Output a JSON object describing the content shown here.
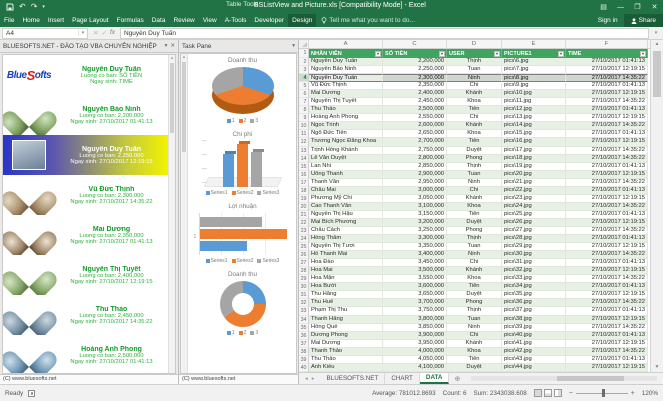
{
  "window": {
    "title": "BSListView and Picture.xls  [Compatibility Mode] - Excel",
    "contextual_group": "Table Tools",
    "quick_access": {
      "save": "save",
      "undo": "undo",
      "redo": "redo",
      "customize": "customize"
    },
    "controls": {
      "ribbon_options": "ribbon-display-options",
      "minimize": "—",
      "restore": "❐",
      "close": "✕"
    }
  },
  "ribbon": {
    "tabs": [
      "File",
      "Home",
      "Insert",
      "Page Layout",
      "Formulas",
      "Data",
      "Review",
      "View",
      "A-Tools",
      "Developer"
    ],
    "contextual_tab": "Design",
    "tell_me": "Tell me what you want to do...",
    "sign_in": "Sign in",
    "share": "Share"
  },
  "formula_bar": {
    "name_box": "A4",
    "value": "Nguyễn Duy Tuấn"
  },
  "left_pane": {
    "title": "BLUESOFTS.NET - ĐÀO TẠO VBA CHUYÊN NGHIỆP",
    "footer": "(C) www.bluesofts.net",
    "logo": {
      "p1": "Blue",
      "p2": "S",
      "p3": "ofts"
    },
    "cards": [
      {
        "type": "logo",
        "selected": false,
        "name": "Nguyễn Duy Tuấn",
        "salary_line": "Luong co ban: SỐ TIỀN",
        "dob_line": "Ngay sinh: TIME"
      },
      {
        "type": "photo",
        "selected": false,
        "name": "Nguyễn Bảo Ninh",
        "salary_line": "Luong co ban: 2,200,000",
        "dob_line": "Ngay sinh: 27/10/2017 01:41:13"
      },
      {
        "type": "photo",
        "selected": true,
        "name": "Nguyễn Duy Tuấn",
        "salary_line": "Luong co ban: 2,250,000",
        "dob_line": "Ngay sinh: 27/10/2017 12:19:15"
      },
      {
        "type": "photo",
        "selected": false,
        "name": "Vũ Đức Thịnh",
        "salary_line": "Luong co ban: 2,300,000",
        "dob_line": "Ngay sinh: 27/10/2017 14:35:22"
      },
      {
        "type": "photo",
        "selected": false,
        "name": "Mai Dương",
        "salary_line": "Luong co ban: 2,350,000",
        "dob_line": "Ngay sinh: 27/10/2017 01:41:13"
      },
      {
        "type": "photo",
        "selected": false,
        "name": "Nguyễn Thị Tuyết",
        "salary_line": "Luong co ban: 2,400,000",
        "dob_line": "Ngay sinh: 27/10/2017 12:19:15"
      },
      {
        "type": "photo",
        "selected": false,
        "name": "Thu Thảo",
        "salary_line": "Luong co ban: 2,450,000",
        "dob_line": "Ngay sinh: 27/10/2017 14:35:22"
      },
      {
        "type": "photo",
        "selected": false,
        "name": "Hoàng Anh Phong",
        "salary_line": "Luong co ban: 2,500,000",
        "dob_line": "Ngay sinh: 27/10/2017 01:41:13"
      }
    ]
  },
  "task_pane": {
    "title": "Task Pane",
    "footer": "(C) www.bluesofts.net",
    "series_colors": [
      "#5B9BD5",
      "#ED7D31",
      "#A5A5A5"
    ],
    "charts": [
      {
        "type": "pie3d",
        "title": "Doanh thu",
        "labels": [
          "1",
          "2",
          "3"
        ],
        "values": [
          30,
          40,
          30
        ]
      },
      {
        "type": "column3d",
        "title": "Chi phí",
        "labels": [
          "Series1",
          "Series2",
          "Series3"
        ],
        "values": [
          26,
          34,
          28
        ]
      },
      {
        "type": "barh",
        "title": "Lợi nhuận",
        "labels": [
          "Series1",
          "Series2",
          "Series3"
        ],
        "values": [
          55,
          100,
          72
        ],
        "axis_label": "1"
      },
      {
        "type": "donut",
        "title": "Doanh thu",
        "labels": [
          "1",
          "2",
          "3"
        ],
        "values": [
          25,
          40,
          35
        ]
      }
    ]
  },
  "sheet": {
    "col_letters": [
      "A",
      "C",
      "D",
      "E",
      "F"
    ],
    "headers": [
      "NHÂN VIÊN",
      "SỐ TIỀN",
      "USER",
      "PICTURE1",
      "TIME"
    ],
    "selected_row": 4,
    "rows": [
      [
        "Nguyễn Duy Tuấn",
        "2,200,000",
        "Thịnh",
        "pics\\6.jpg",
        "27/10/2017 01:41:13"
      ],
      [
        "Nguyễn Bảo Ninh",
        "2,250,000",
        "Tuan",
        "pics\\7.jpg",
        "27/10/2017 12:19:15"
      ],
      [
        "Nguyễn Duy Tuấn",
        "2,300,000",
        "Ninh",
        "pics\\8.jpg",
        "27/10/2017 14:35:22"
      ],
      [
        "Vũ Đức Thịnh",
        "2,350,000",
        "Chi",
        "pics\\9.jpg",
        "27/10/2017 01:41:13"
      ],
      [
        "Mai Dương",
        "2,400,000",
        "Khánh",
        "pics\\10.jpg",
        "27/10/2017 12:19:15"
      ],
      [
        "Nguyễn Thị Tuyết",
        "2,450,000",
        "Khoa",
        "pics\\11.jpg",
        "27/10/2017 14:35:22"
      ],
      [
        "Thu Thảo",
        "2,500,000",
        "Tiên",
        "pics\\12.jpg",
        "27/10/2017 01:41:13"
      ],
      [
        "Hoàng Anh Phong",
        "2,550,000",
        "Chi",
        "pics\\13.jpg",
        "27/10/2017 12:19:15"
      ],
      [
        "Ngọc Trinh",
        "2,600,000",
        "Khánh",
        "pics\\14.jpg",
        "27/10/2017 14:35:22"
      ],
      [
        "Ngô Đức Tiến",
        "2,650,000",
        "Khoa",
        "pics\\15.jpg",
        "27/10/2017 01:41:13"
      ],
      [
        "Trương Ngọc Đăng Khoa",
        "2,700,000",
        "Tiên",
        "pics\\16.jpg",
        "27/10/2017 12:19:15"
      ],
      [
        "Trịnh Hồng Khánh",
        "2,750,000",
        "Duyệt",
        "pics\\17.jpg",
        "27/10/2017 14:35:22"
      ],
      [
        "Lê Văn Duyệt",
        "2,800,000",
        "Phong",
        "pics\\18.jpg",
        "27/10/2017 14:35:22"
      ],
      [
        "Lan Nhi",
        "2,850,000",
        "Thịnh",
        "pics\\19.jpg",
        "27/10/2017 01:41:13"
      ],
      [
        "Uông Thanh",
        "2,900,000",
        "Tuan",
        "pics\\20.jpg",
        "27/10/2017 12:19:15"
      ],
      [
        "Thanh Vân",
        "2,950,000",
        "Ninh",
        "pics\\21.jpg",
        "27/10/2017 14:35:22"
      ],
      [
        "Châu Mai",
        "3,000,000",
        "Chi",
        "pics\\22.jpg",
        "27/10/2017 01:41:13"
      ],
      [
        "Phương Mỹ Chi",
        "3,050,000",
        "Khánh",
        "pics\\23.jpg",
        "27/10/2017 12:19:15"
      ],
      [
        "Cao Thanh Vân",
        "3,100,000",
        "Khoa",
        "pics\\24.jpg",
        "27/10/2017 14:35:22"
      ],
      [
        "Nguyễn Thị Hậu",
        "3,150,000",
        "Tiên",
        "pics\\25.jpg",
        "27/10/2017 01:41:13"
      ],
      [
        "Mai Bích Phương",
        "3,200,000",
        "Duyệt",
        "pics\\26.jpg",
        "27/10/2017 12:19:15"
      ],
      [
        "Châu Cách",
        "3,250,000",
        "Phong",
        "pics\\27.jpg",
        "27/10/2017 14:35:22"
      ],
      [
        "Hồng Thắm",
        "3,300,000",
        "Thịnh",
        "pics\\28.jpg",
        "27/10/2017 01:41:13"
      ],
      [
        "Nguyễn Thị Tươi",
        "3,350,000",
        "Tuan",
        "pics\\29.jpg",
        "27/10/2017 12:19:15"
      ],
      [
        "Hồ Thanh Mai",
        "3,400,000",
        "Ninh",
        "pics\\30.jpg",
        "27/10/2017 14:35:22"
      ],
      [
        "Hoa Đào",
        "3,450,000",
        "Chi",
        "pics\\31.jpg",
        "27/10/2017 01:41:13"
      ],
      [
        "Hoa Mai",
        "3,500,000",
        "Khánh",
        "pics\\32.jpg",
        "27/10/2017 12:19:15"
      ],
      [
        "Hoa Mận",
        "3,550,000",
        "Khoa",
        "pics\\33.jpg",
        "27/10/2017 14:35:22"
      ],
      [
        "Hoa Bưởi",
        "3,600,000",
        "Tiên",
        "pics\\34.jpg",
        "27/10/2017 01:41:13"
      ],
      [
        "Thu Hằng",
        "3,650,000",
        "Duyệt",
        "pics\\35.jpg",
        "27/10/2017 12:19:15"
      ],
      [
        "Thu Huế",
        "3,700,000",
        "Phong",
        "pics\\36.jpg",
        "27/10/2017 14:35:22"
      ],
      [
        "Phạm Thị Thu",
        "3,750,000",
        "Thịnh",
        "pics\\37.jpg",
        "27/10/2017 01:41:13"
      ],
      [
        "Thanh Hằng",
        "3,800,000",
        "Tuan",
        "pics\\38.jpg",
        "27/10/2017 12:19:15"
      ],
      [
        "Hồng Quế",
        "3,850,000",
        "Ninh",
        "pics\\39.jpg",
        "27/10/2017 14:35:22"
      ],
      [
        "Dương Phong",
        "3,900,000",
        "Chi",
        "pics\\40.jpg",
        "27/10/2017 01:41:13"
      ],
      [
        "Mai Dương",
        "3,950,000",
        "Khánh",
        "pics\\41.jpg",
        "27/10/2017 12:19:15"
      ],
      [
        "Thanh Thảo",
        "4,000,000",
        "Khoa",
        "pics\\42.jpg",
        "27/10/2017 14:35:22"
      ],
      [
        "Thu Thảo",
        "4,050,000",
        "Tiên",
        "pics\\43.jpg",
        "27/10/2017 01:41:13"
      ],
      [
        "Ánh Kiều",
        "4,100,000",
        "Duyệt",
        "pics\\44.jpg",
        "27/10/2017 12:19:15"
      ]
    ]
  },
  "sheet_tabs": {
    "tabs": [
      "BLUESOFTS.NET",
      "CHART",
      "DATA"
    ],
    "active": "DATA"
  },
  "status_bar": {
    "ready": "Ready",
    "average": "Average: 781012.8693",
    "count": "Count: 6",
    "sum": "Sum: 2343038.608",
    "zoom_level": "120%"
  },
  "colors": {
    "excel_green": "#217346",
    "table_header_green": "#3fa45f",
    "band_green": "#e7f1e3",
    "card_name_green": "#149b29",
    "selected_card_gradient": [
      "#2b35c9",
      "#f2f400"
    ]
  }
}
